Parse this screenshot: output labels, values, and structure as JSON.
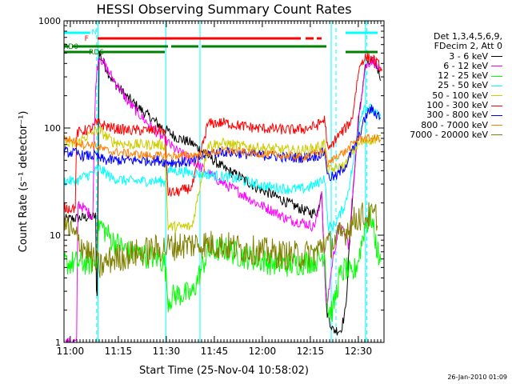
{
  "chart_data": {
    "type": "line",
    "title": "HESSI Observing Summary Count Rates",
    "xlabel": "Start Time (25-Nov-04 10:58:02)",
    "ylabel": "Count Rate (s⁻¹ detector⁻¹)",
    "yscale": "log",
    "ylim": [
      1,
      1000
    ],
    "xlim_minutes_after_start": [
      0,
      100
    ],
    "x_tick_labels": [
      "11:00",
      "11:15",
      "11:30",
      "11:45",
      "12:00",
      "12:15",
      "12:30"
    ],
    "x_tick_minutes": [
      1.97,
      16.97,
      31.97,
      46.97,
      61.97,
      76.97,
      91.97
    ],
    "y_tick_labels": [
      "1",
      "10",
      "100",
      "1000"
    ],
    "y_tick_values": [
      1,
      10,
      100,
      1000
    ],
    "grid": false,
    "legend_title": [
      "Det 1,3,4,5,6,9,",
      "FDecim 2, Att 0"
    ],
    "series": [
      {
        "name": "3 - 6 keV",
        "color": "#000000",
        "x": [
          0,
          10,
          10.2,
          11,
          15,
          20,
          25,
          30,
          35,
          40,
          45,
          50,
          55,
          60,
          65,
          70,
          75,
          78,
          79.5,
          80.5,
          82,
          84,
          86.5,
          88,
          90,
          92,
          94,
          96,
          97.5,
          99
        ],
        "y": [
          14,
          15,
          1,
          500,
          280,
          190,
          140,
          105,
          82,
          72,
          55,
          42,
          35,
          28,
          24,
          20,
          17,
          16,
          17,
          28,
          2,
          1.3,
          1.3,
          2,
          20,
          110,
          360,
          420,
          390,
          300
        ]
      },
      {
        "name": "6 - 12 keV",
        "color": "#ff00ff",
        "x": [
          0,
          4,
          4.3,
          9,
          9.4,
          10,
          11,
          15,
          20,
          25,
          30,
          35,
          40,
          45,
          50,
          55,
          60,
          65,
          70,
          75,
          78,
          79.5,
          80.5,
          82,
          84,
          86,
          88,
          89,
          90,
          92,
          94,
          96,
          97.5,
          99
        ],
        "y": [
          1,
          1,
          20,
          15,
          70,
          300,
          470,
          300,
          175,
          120,
          85,
          62,
          50,
          38,
          30,
          25,
          20,
          17,
          14,
          13,
          12,
          16,
          27,
          2,
          6,
          12,
          10,
          8,
          20,
          120,
          360,
          430,
          400,
          320
        ]
      },
      {
        "name": "12 - 25 keV",
        "color": "#00ff00",
        "x": [
          0,
          10,
          11,
          15,
          20,
          25,
          30,
          31.5,
          32.5,
          35,
          40,
          45,
          50,
          55,
          60,
          65,
          70,
          75,
          80,
          81.5,
          82.5,
          84,
          86,
          88,
          90,
          92,
          94,
          96,
          97,
          99
        ],
        "y": [
          5.5,
          5.5,
          13,
          9,
          7,
          6.5,
          6,
          5.5,
          2.5,
          2.8,
          2.8,
          7,
          7.5,
          6.5,
          6,
          5.5,
          5.3,
          5.6,
          6,
          7,
          2,
          2,
          4,
          5,
          4,
          6,
          12,
          15,
          10,
          5
        ]
      },
      {
        "name": "25 - 50 keV",
        "color": "#00ffff",
        "x": [
          0,
          4,
          6,
          9,
          10,
          11,
          13,
          15,
          20,
          25,
          30,
          31.5,
          32.5,
          35,
          40,
          45,
          50,
          55,
          60,
          65,
          70,
          75,
          79,
          80.5,
          81.5,
          82.5,
          84,
          86,
          88,
          90,
          92,
          93,
          94,
          96,
          98,
          99
        ],
        "y": [
          32,
          32,
          35,
          38,
          40,
          42,
          38,
          34,
          32,
          32,
          32,
          31,
          40,
          40,
          38,
          37,
          35,
          33,
          30,
          28,
          27,
          27,
          30,
          33,
          35,
          12,
          12,
          15,
          20,
          40,
          100,
          140,
          160,
          150,
          130,
          120
        ]
      },
      {
        "name": "50 - 100 keV",
        "color": "#cccc00",
        "x": [
          0,
          4,
          6,
          9,
          10,
          11,
          13,
          15,
          20,
          25,
          30,
          31.5,
          32.5,
          35,
          40,
          45,
          50,
          55,
          60,
          65,
          70,
          75,
          79,
          80.5,
          81.5,
          82.5,
          85,
          88,
          90,
          92,
          94,
          96,
          99
        ],
        "y": [
          70,
          70,
          80,
          90,
          95,
          95,
          85,
          75,
          70,
          70,
          70,
          68,
          12,
          12,
          12,
          70,
          72,
          68,
          66,
          64,
          62,
          62,
          66,
          70,
          72,
          40,
          42,
          45,
          60,
          70,
          75,
          78,
          80
        ]
      },
      {
        "name": "100 - 300 keV",
        "color": "#ff0000",
        "x": [
          0,
          3.5,
          4,
          9,
          10,
          11,
          13,
          15,
          20,
          25,
          30,
          31.5,
          32.5,
          35,
          40,
          45,
          50,
          55,
          60,
          65,
          70,
          75,
          79,
          80.5,
          81.5,
          82.5,
          85,
          88,
          90,
          91,
          92,
          93,
          94,
          95.5,
          97,
          98.5,
          99.5
        ],
        "y": [
          18,
          18,
          90,
          100,
          110,
          110,
          105,
          100,
          95,
          95,
          95,
          92,
          25,
          25,
          28,
          110,
          112,
          105,
          100,
          98,
          96,
          98,
          105,
          115,
          120,
          60,
          80,
          100,
          120,
          200,
          330,
          420,
          450,
          450,
          430,
          380,
          320
        ]
      },
      {
        "name": "300 - 800 keV",
        "color": "#0000ff",
        "x": [
          0,
          4,
          6,
          9,
          10,
          11,
          13,
          15,
          20,
          25,
          30,
          31.5,
          32.5,
          35,
          40,
          45,
          50,
          55,
          60,
          65,
          70,
          75,
          79,
          80.5,
          81.5,
          82.5,
          85,
          88,
          90,
          92,
          93,
          94,
          95,
          96,
          97.5,
          99
        ],
        "y": [
          60,
          58,
          55,
          55,
          55,
          52,
          50,
          50,
          50,
          50,
          50,
          48,
          48,
          48,
          48,
          58,
          60,
          58,
          56,
          55,
          53,
          53,
          55,
          58,
          60,
          35,
          35,
          45,
          60,
          80,
          100,
          120,
          140,
          150,
          135,
          130
        ]
      },
      {
        "name": "800 - 7000 keV",
        "color": "#ff8000",
        "x": [
          0,
          4,
          6,
          9,
          10,
          11,
          13,
          15,
          20,
          25,
          30,
          35,
          40,
          45,
          50,
          55,
          60,
          65,
          70,
          75,
          79,
          80.5,
          81.5,
          82.5,
          85,
          88,
          90,
          92,
          94,
          96,
          99
        ],
        "y": [
          80,
          75,
          70,
          70,
          68,
          66,
          62,
          60,
          58,
          56,
          55,
          55,
          56,
          58,
          62,
          60,
          58,
          56,
          55,
          54,
          58,
          60,
          62,
          45,
          55,
          60,
          70,
          80,
          80,
          80,
          80
        ]
      },
      {
        "name": "7000 - 20000 keV",
        "color": "#808000",
        "x": [
          0,
          3,
          6,
          9,
          11,
          13,
          15,
          20,
          25,
          30,
          35,
          40,
          45,
          50,
          55,
          60,
          65,
          70,
          75,
          79,
          80.5,
          81.5,
          82.5,
          85,
          88,
          90,
          92,
          94,
          96,
          98
        ],
        "y": [
          13,
          10,
          8,
          6,
          5,
          5.5,
          6,
          6.5,
          7,
          7.5,
          8,
          8.2,
          8.3,
          8,
          7.5,
          7.2,
          6.8,
          6.5,
          6.5,
          7,
          8,
          9,
          8,
          9,
          11,
          13,
          15,
          15,
          15,
          15
        ]
      }
    ],
    "flag_tracks": [
      {
        "label": "N",
        "color": "#00ffff",
        "segments": [
          [
            0,
            8.2
          ],
          [
            88,
            98
          ]
        ]
      },
      {
        "label": "F",
        "color": "#ff0000",
        "segments": [
          [
            10.5,
            74
          ],
          [
            75.5,
            78
          ],
          [
            79,
            80.5
          ]
        ]
      },
      {
        "label": "RD0",
        "color": "#008000",
        "segments": [
          [
            0,
            1.5
          ],
          [
            2.5,
            32.5
          ],
          [
            33.5,
            42
          ],
          [
            43,
            82
          ]
        ]
      },
      {
        "label": "RD6",
        "color": "#008000",
        "segments": [
          [
            0,
            8.8
          ],
          [
            11,
            31.5
          ],
          [
            88,
            98
          ]
        ]
      }
    ],
    "vertical_markers": [
      {
        "color": "#00ffff",
        "style": "dashed",
        "x": 10.2
      },
      {
        "color": "#00ffff",
        "style": "solid",
        "x": 10.6
      },
      {
        "color": "#00ffff",
        "style": "solid",
        "x": 31.8
      },
      {
        "color": "#00ffff",
        "style": "solid",
        "x": 42.5
      },
      {
        "color": "#00ffff",
        "style": "solid",
        "x": 83.5
      },
      {
        "color": "#00ffff",
        "style": "dashed",
        "x": 85
      },
      {
        "color": "#00ffff",
        "style": "solid",
        "x": 94.2
      },
      {
        "color": "#00ffff",
        "style": "dashed",
        "x": 94.6
      }
    ]
  },
  "footer": {
    "stamp": "26-Jan-2010 01:09"
  }
}
